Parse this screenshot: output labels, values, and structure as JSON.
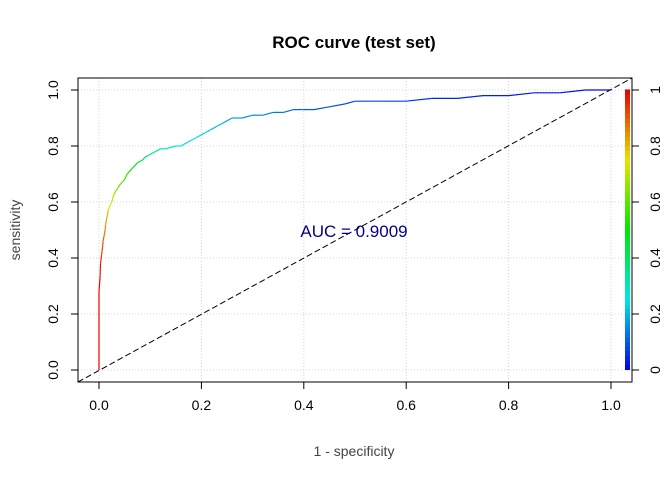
{
  "chart_data": {
    "type": "line",
    "title": "ROC curve (test set)",
    "xlabel": "1 - specificity",
    "ylabel": "sensitivity",
    "xlim": [
      0,
      1
    ],
    "ylim": [
      0,
      1
    ],
    "x_ticks": [
      "0.0",
      "0.2",
      "0.4",
      "0.6",
      "0.8",
      "1.0"
    ],
    "y_ticks": [
      "0.0",
      "0.2",
      "0.4",
      "0.6",
      "0.8",
      "1.0"
    ],
    "grid": true,
    "annotation": "AUC = 0.9009",
    "annotation_color": "#00008b",
    "diagonal_reference": true,
    "colorbar": {
      "colormap": "rainbow (blue at 0 to red at 1)",
      "ticks": [
        "0",
        "0.2",
        "0.4",
        "0.6",
        "0.8",
        "1"
      ],
      "placement": "right"
    },
    "series": [
      {
        "x": [
          0,
          0,
          0.002,
          0.003,
          0.005,
          0.007,
          0.008,
          0.01,
          0.012,
          0.013,
          0.015,
          0.017,
          0.018,
          0.02,
          0.022,
          0.025,
          0.028,
          0.03,
          0.033,
          0.037,
          0.04,
          0.045,
          0.05,
          0.055,
          0.06,
          0.065,
          0.07,
          0.075,
          0.08,
          0.085,
          0.09,
          0.095,
          0.1,
          0.11,
          0.12,
          0.13,
          0.14,
          0.15,
          0.16,
          0.17,
          0.18,
          0.19,
          0.2,
          0.21,
          0.22,
          0.23,
          0.24,
          0.25,
          0.26,
          0.28,
          0.3,
          0.32,
          0.34,
          0.36,
          0.38,
          0.4,
          0.42,
          0.45,
          0.48,
          0.5,
          0.55,
          0.6,
          0.65,
          0.7,
          0.75,
          0.8,
          0.85,
          0.9,
          0.95,
          1.0
        ],
        "y": [
          0,
          0.28,
          0.33,
          0.38,
          0.41,
          0.44,
          0.46,
          0.48,
          0.5,
          0.52,
          0.54,
          0.56,
          0.57,
          0.58,
          0.59,
          0.6,
          0.62,
          0.63,
          0.64,
          0.65,
          0.66,
          0.67,
          0.68,
          0.7,
          0.71,
          0.72,
          0.73,
          0.74,
          0.745,
          0.75,
          0.76,
          0.765,
          0.77,
          0.78,
          0.79,
          0.79,
          0.795,
          0.8,
          0.8,
          0.81,
          0.82,
          0.83,
          0.84,
          0.85,
          0.86,
          0.87,
          0.88,
          0.89,
          0.9,
          0.9,
          0.91,
          0.91,
          0.92,
          0.92,
          0.93,
          0.93,
          0.93,
          0.94,
          0.95,
          0.96,
          0.96,
          0.96,
          0.97,
          0.97,
          0.98,
          0.98,
          0.99,
          0.99,
          1.0,
          1.0
        ],
        "threshold": [
          1,
          0.99,
          0.97,
          0.95,
          0.93,
          0.91,
          0.89,
          0.87,
          0.85,
          0.83,
          0.81,
          0.79,
          0.77,
          0.75,
          0.73,
          0.7,
          0.67,
          0.65,
          0.63,
          0.61,
          0.59,
          0.57,
          0.55,
          0.53,
          0.51,
          0.49,
          0.47,
          0.45,
          0.43,
          0.41,
          0.39,
          0.37,
          0.35,
          0.33,
          0.31,
          0.3,
          0.29,
          0.28,
          0.27,
          0.26,
          0.25,
          0.24,
          0.23,
          0.22,
          0.21,
          0.2,
          0.19,
          0.18,
          0.17,
          0.16,
          0.15,
          0.14,
          0.13,
          0.12,
          0.11,
          0.1,
          0.095,
          0.09,
          0.085,
          0.08,
          0.07,
          0.06,
          0.05,
          0.04,
          0.035,
          0.03,
          0.02,
          0.015,
          0.01,
          0.0
        ]
      }
    ]
  }
}
